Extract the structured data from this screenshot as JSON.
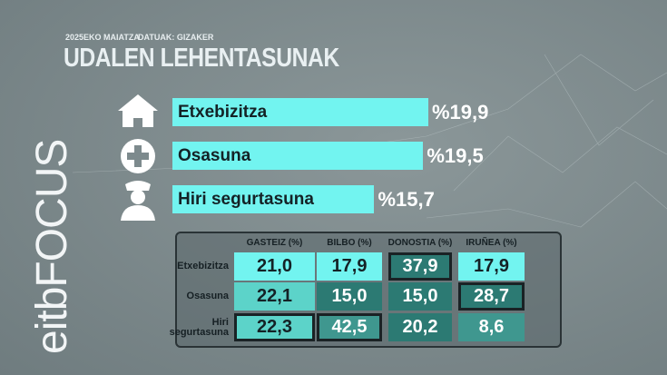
{
  "header": {
    "date": "2025EKO MAIATZA",
    "source": "DATUAK: GIZAKER",
    "title": "UDALEN LEHENTASUNAK",
    "logo": "eitbFOCUS"
  },
  "chart_data": {
    "type": "bar",
    "orientation": "horizontal",
    "categories": [
      "Etxebizitza",
      "Osasuna",
      "Hiri segurtasuna"
    ],
    "values": [
      19.9,
      19.5,
      15.7
    ],
    "value_labels": [
      "%19,9",
      "%19,5",
      "%15,7"
    ],
    "color": "#72f4f0"
  },
  "table": {
    "columns": [
      "GASTEIZ (%)",
      "BILBO (%)",
      "DONOSTIA (%)",
      "IRUÑEA (%)"
    ],
    "row_labels": [
      "Etxebizitza",
      "Osasuna",
      "Hiri segurtasuna"
    ],
    "rows": [
      [
        "21,0",
        "17,9",
        "37,9",
        "17,9"
      ],
      [
        "22,1",
        "15,0",
        "15,0",
        "28,7"
      ],
      [
        "22,3",
        "42,5",
        "20,2",
        "8,6"
      ]
    ]
  }
}
